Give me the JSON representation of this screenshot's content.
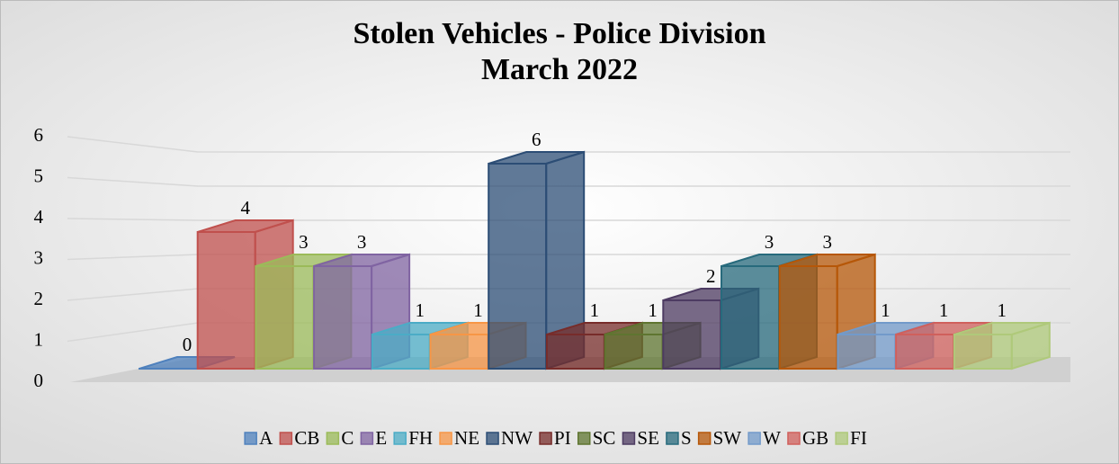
{
  "chart_data": {
    "type": "bar3d",
    "title": "Stolen Vehicles - Police Division",
    "subtitle": "March 2022",
    "categories": [
      null
    ],
    "series": [
      {
        "name": "A",
        "color": "#4f81bd",
        "values": [
          0
        ]
      },
      {
        "name": "CB",
        "color": "#c0504d",
        "values": [
          4
        ]
      },
      {
        "name": "C",
        "color": "#9bbb59",
        "values": [
          3
        ]
      },
      {
        "name": "E",
        "color": "#8064a2",
        "values": [
          3
        ]
      },
      {
        "name": "FH",
        "color": "#4bacc6",
        "values": [
          1
        ]
      },
      {
        "name": "NE",
        "color": "#f79646",
        "values": [
          1
        ]
      },
      {
        "name": "NW",
        "color": "#2c4d75",
        "values": [
          6
        ]
      },
      {
        "name": "PI",
        "color": "#772c2a",
        "values": [
          1
        ]
      },
      {
        "name": "SC",
        "color": "#5f7530",
        "values": [
          1
        ]
      },
      {
        "name": "SE",
        "color": "#4d3b62",
        "values": [
          2
        ]
      },
      {
        "name": "S",
        "color": "#276a7c",
        "values": [
          3
        ]
      },
      {
        "name": "SW",
        "color": "#b65708",
        "values": [
          3
        ]
      },
      {
        "name": "W",
        "color": "#729aca",
        "values": [
          1
        ]
      },
      {
        "name": "GB",
        "color": "#d0605c",
        "values": [
          1
        ]
      },
      {
        "name": "FI",
        "color": "#afc97a",
        "values": [
          1
        ]
      }
    ],
    "ylim": [
      0,
      6
    ],
    "yticks": [
      0,
      1,
      2,
      3,
      4,
      5,
      6
    ],
    "grid": true,
    "legend": "bottom"
  }
}
